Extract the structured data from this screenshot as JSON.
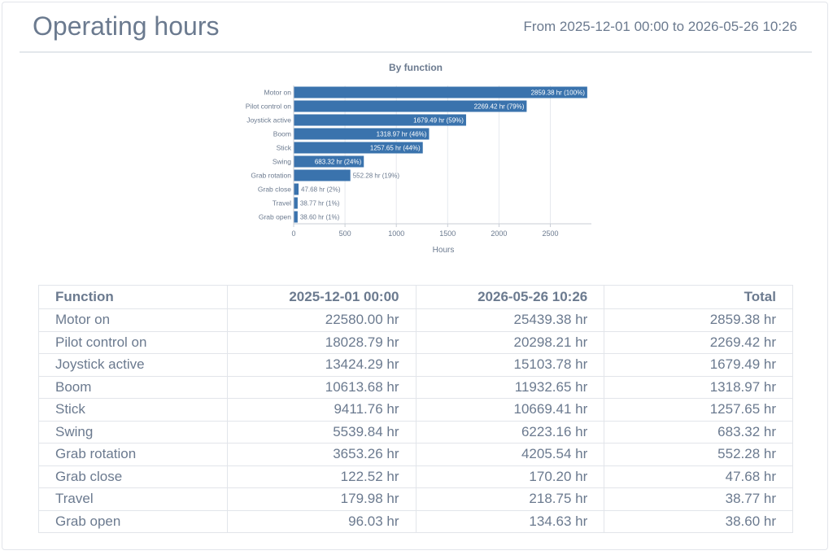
{
  "header": {
    "title": "Operating hours",
    "range": "From 2025-12-01 00:00 to 2026-05-26 10:26"
  },
  "colors": {
    "bar": "#3a73ad",
    "text": "#6b7a8f",
    "grid": "#e6e9ee"
  },
  "chart_data": {
    "type": "bar",
    "orientation": "horizontal",
    "title": "By function",
    "xlabel": "Hours",
    "ylabel": "",
    "xlim": [
      0,
      2900
    ],
    "xticks": [
      0,
      500,
      1000,
      1500,
      2000,
      2500
    ],
    "grid": true,
    "categories": [
      "Motor on",
      "Pilot control on",
      "Joystick active",
      "Boom",
      "Stick",
      "Swing",
      "Grab rotation",
      "Grab close",
      "Travel",
      "Grab open"
    ],
    "values": [
      2859.38,
      2269.42,
      1679.49,
      1318.97,
      1257.65,
      683.32,
      552.28,
      47.68,
      38.77,
      38.6
    ],
    "data_labels": [
      "2859.38 hr (100%)",
      "2269.42 hr (79%)",
      "1679.49 hr (59%)",
      "1318.97 hr (46%)",
      "1257.65 hr (44%)",
      "683.32 hr (24%)",
      "552.28 hr (19%)",
      "47.68 hr (2%)",
      "38.77 hr (1%)",
      "38.60 hr (1%)"
    ]
  },
  "table": {
    "headers": [
      "Function",
      "2025-12-01 00:00",
      "2026-05-26 10:26",
      "Total"
    ],
    "rows": [
      [
        "Motor on",
        "22580.00 hr",
        "25439.38 hr",
        "2859.38 hr"
      ],
      [
        "Pilot control on",
        "18028.79 hr",
        "20298.21 hr",
        "2269.42 hr"
      ],
      [
        "Joystick active",
        "13424.29 hr",
        "15103.78 hr",
        "1679.49 hr"
      ],
      [
        "Boom",
        "10613.68 hr",
        "11932.65 hr",
        "1318.97 hr"
      ],
      [
        "Stick",
        "9411.76 hr",
        "10669.41 hr",
        "1257.65 hr"
      ],
      [
        "Swing",
        "5539.84 hr",
        "6223.16 hr",
        "683.32 hr"
      ],
      [
        "Grab rotation",
        "3653.26 hr",
        "4205.54 hr",
        "552.28 hr"
      ],
      [
        "Grab close",
        "122.52 hr",
        "170.20 hr",
        "47.68 hr"
      ],
      [
        "Travel",
        "179.98 hr",
        "218.75 hr",
        "38.77 hr"
      ],
      [
        "Grab open",
        "96.03 hr",
        "134.63 hr",
        "38.60 hr"
      ]
    ]
  }
}
